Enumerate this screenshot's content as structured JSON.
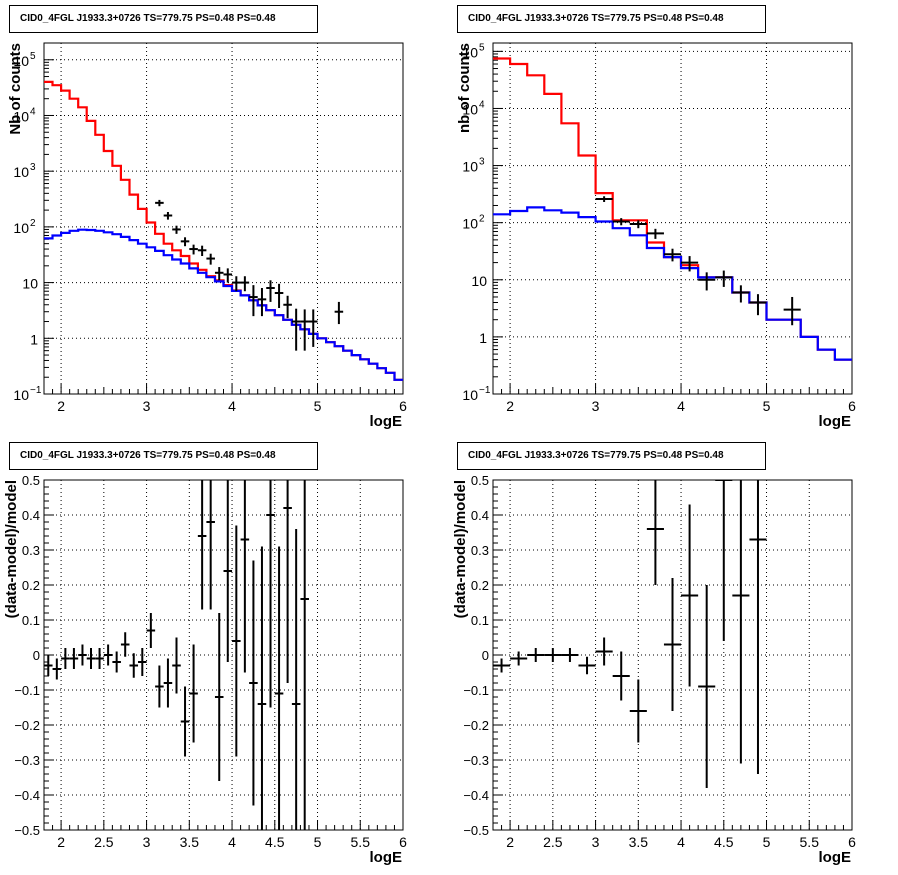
{
  "panels": [
    {
      "title": "CID0_4FGL J1933.3+0726 TS=779.75 PS=0.48 PS=0.48",
      "xlabel": "logE",
      "ylabel": "Nb of counts",
      "ylabel_style": "counts",
      "ylim": [
        0.1,
        200000
      ],
      "yscale": "log",
      "y_ticks": [
        {
          "v": 0.1,
          "b": "10",
          "e": "−1"
        },
        {
          "v": 1,
          "b": "1",
          "e": ""
        },
        {
          "v": 10,
          "b": "10",
          "e": ""
        },
        {
          "v": 100,
          "b": "10",
          "e": "2"
        },
        {
          "v": 1000,
          "b": "10",
          "e": "3"
        },
        {
          "v": 10000,
          "b": "10",
          "e": "4"
        },
        {
          "v": 100000,
          "b": "10",
          "e": "5"
        }
      ],
      "x_tick_labels": [
        "2",
        "3",
        "4",
        "5",
        "6"
      ]
    },
    {
      "title": "CID0_4FGL J1933.3+0726 TS=779.75 PS=0.48 PS=0.48",
      "xlabel": "logE",
      "ylabel": "nb of counts",
      "ylabel_style": "counts",
      "ylim": [
        0.1,
        140000
      ],
      "yscale": "log",
      "y_ticks": [
        {
          "v": 0.1,
          "b": "10",
          "e": "−1"
        },
        {
          "v": 1,
          "b": "1",
          "e": ""
        },
        {
          "v": 10,
          "b": "10",
          "e": ""
        },
        {
          "v": 100,
          "b": "10",
          "e": "2"
        },
        {
          "v": 1000,
          "b": "10",
          "e": "3"
        },
        {
          "v": 10000,
          "b": "10",
          "e": "4"
        },
        {
          "v": 100000,
          "b": "10",
          "e": "5"
        }
      ],
      "x_tick_labels": [
        "2",
        "3",
        "4",
        "5",
        "6"
      ]
    },
    {
      "title": "CID0_4FGL J1933.3+0726 TS=779.75 PS=0.48 PS=0.48",
      "xlabel": "logE",
      "ylabel": "(data-model)/model",
      "ylim": [
        -0.5,
        0.5
      ],
      "yscale": "linear",
      "y_tick_labels": [
        "−0.5",
        "−0.4",
        "−0.3",
        "−0.2",
        "−0.1",
        "0",
        "0.1",
        "0.2",
        "0.3",
        "0.4",
        "0.5"
      ],
      "x_tick_labels": [
        "2",
        "2.5",
        "3",
        "3.5",
        "4",
        "4.5",
        "5",
        "5.5",
        "6"
      ]
    },
    {
      "title": "CID0_4FGL J1933.3+0726 TS=779.75 PS=0.48 PS=0.48",
      "xlabel": "logE",
      "ylabel": "(data-model)/model",
      "ylim": [
        -0.5,
        0.5
      ],
      "yscale": "linear",
      "y_tick_labels": [
        "−0.5",
        "−0.4",
        "−0.3",
        "−0.2",
        "−0.1",
        "0",
        "0.1",
        "0.2",
        "0.3",
        "0.4",
        "0.5"
      ],
      "x_tick_labels": [
        "2",
        "2.5",
        "3",
        "3.5",
        "4",
        "4.5",
        "5",
        "5.5",
        "6"
      ]
    }
  ],
  "chart_data": [
    {
      "type": "line",
      "xlim": [
        1.8,
        6.0
      ],
      "series": [
        {
          "role": "total model",
          "color": "#ff0000",
          "step": 0.1,
          "x": [
            1.8,
            1.9,
            2.0,
            2.1,
            2.2,
            2.3,
            2.4,
            2.5,
            2.6,
            2.7,
            2.8,
            2.9,
            3.0,
            3.1,
            3.2,
            3.3,
            3.4,
            3.5,
            3.6,
            3.7,
            3.8,
            3.9,
            4.0,
            4.1,
            4.2,
            4.3,
            4.4,
            4.5,
            4.6,
            4.7,
            4.8,
            4.9,
            5.0,
            5.1,
            5.2,
            5.3,
            5.4,
            5.5,
            5.6,
            5.7,
            5.8,
            5.9
          ],
          "y": [
            40000,
            35000,
            28000,
            20000,
            14000,
            8000,
            4500,
            2300,
            1250,
            700,
            380,
            210,
            120,
            75,
            50,
            38,
            30,
            22,
            17,
            13,
            11,
            9,
            7.2,
            5.9,
            4.8,
            3.9,
            3.2,
            2.6,
            2.15,
            1.75,
            1.45,
            1.2,
            1.0,
            0.85,
            0.72,
            0.6,
            0.5,
            0.42,
            0.35,
            0.29,
            0.24,
            0.18
          ]
        },
        {
          "role": "component",
          "color": "#0000ff",
          "step": 0.1,
          "x": [
            1.8,
            1.9,
            2.0,
            2.1,
            2.2,
            2.3,
            2.4,
            2.5,
            2.6,
            2.7,
            2.8,
            2.9,
            3.0,
            3.1,
            3.2,
            3.3,
            3.4,
            3.5,
            3.6,
            3.7,
            3.8,
            3.9,
            4.0,
            4.1,
            4.2,
            4.3,
            4.4,
            4.5,
            4.6,
            4.7,
            4.8,
            4.9,
            5.0,
            5.1,
            5.2,
            5.3,
            5.4,
            5.5,
            5.6,
            5.7,
            5.8,
            5.9
          ],
          "y": [
            62,
            70,
            78,
            85,
            89,
            88,
            85,
            80,
            74,
            66,
            58,
            50,
            43,
            37,
            31,
            26,
            22,
            18,
            15,
            12.5,
            10.5,
            8.7,
            7.1,
            5.9,
            4.8,
            3.9,
            3.2,
            2.6,
            2.15,
            1.75,
            1.45,
            1.2,
            1.0,
            0.85,
            0.72,
            0.6,
            0.5,
            0.42,
            0.35,
            0.29,
            0.24,
            0.18
          ]
        },
        {
          "role": "data",
          "color": "#000000",
          "kind": "points",
          "x": [
            3.15,
            3.25,
            3.35,
            3.45,
            3.55,
            3.65,
            3.75,
            3.85,
            3.95,
            4.05,
            4.15,
            4.25,
            4.35,
            4.45,
            4.55,
            4.65,
            4.75,
            4.85,
            4.95,
            5.25
          ],
          "y": [
            270,
            160,
            90,
            55,
            40,
            38,
            27,
            15,
            14,
            10,
            10,
            5.5,
            5,
            8,
            6.5,
            4,
            2,
            2,
            2,
            3
          ],
          "xerr": 0.05,
          "ylo": [
            235,
            135,
            75,
            45,
            32,
            30,
            21,
            11,
            10,
            7,
            7,
            2.5,
            2.5,
            4.5,
            3.5,
            2.3,
            0.6,
            0.6,
            0.7,
            1.8
          ],
          "yhi": [
            305,
            185,
            105,
            65,
            48,
            46,
            33,
            19,
            18,
            13,
            13,
            9,
            8,
            11,
            9.5,
            5.8,
            3.4,
            3.3,
            3.3,
            4.5
          ]
        }
      ]
    },
    {
      "type": "line",
      "xlim": [
        1.8,
        6.0
      ],
      "series": [
        {
          "role": "total model",
          "color": "#ff0000",
          "step": 0.2,
          "x": [
            1.8,
            2.0,
            2.2,
            2.4,
            2.6,
            2.8,
            3.0,
            3.2,
            3.4,
            3.6,
            3.8,
            4.0,
            4.2,
            4.4,
            4.6,
            4.8,
            5.0,
            5.2,
            5.4,
            5.6,
            5.8
          ],
          "y": [
            75000,
            60000,
            38000,
            18000,
            5500,
            1500,
            330,
            110,
            110,
            45,
            25,
            18,
            11,
            11,
            6,
            4,
            2,
            2,
            1,
            0.6,
            0.4
          ]
        },
        {
          "role": "component",
          "color": "#0000ff",
          "step": 0.2,
          "x": [
            1.8,
            2.0,
            2.2,
            2.4,
            2.6,
            2.8,
            3.0,
            3.2,
            3.4,
            3.6,
            3.8,
            4.0,
            4.2,
            4.4,
            4.6,
            4.8,
            5.0,
            5.2,
            5.4,
            5.6,
            5.8
          ],
          "y": [
            140,
            160,
            185,
            165,
            150,
            125,
            105,
            80,
            60,
            36,
            25,
            16,
            11,
            11,
            6,
            4,
            2,
            2,
            1,
            0.6,
            0.4
          ]
        },
        {
          "role": "data",
          "color": "#000000",
          "kind": "points",
          "x": [
            3.1,
            3.3,
            3.5,
            3.7,
            3.9,
            4.1,
            4.3,
            4.5,
            4.7,
            4.9,
            5.3
          ],
          "y": [
            260,
            105,
            95,
            65,
            28,
            20,
            10,
            11,
            6,
            4,
            3
          ],
          "xerr": 0.1,
          "ylo": [
            230,
            90,
            80,
            52,
            21,
            14,
            6.5,
            7.5,
            4,
            2.4,
            1.6
          ],
          "yhi": [
            290,
            120,
            110,
            78,
            35,
            26,
            13.5,
            14.5,
            8,
            5.6,
            5
          ]
        }
      ]
    },
    {
      "type": "scatter",
      "xlim": [
        1.8,
        6.0
      ],
      "ylim": [
        -0.5,
        0.5
      ],
      "series": [
        {
          "role": "residuals",
          "color": "#000000",
          "xerr": 0.05,
          "x": [
            1.85,
            1.95,
            2.05,
            2.15,
            2.25,
            2.35,
            2.45,
            2.55,
            2.65,
            2.75,
            2.85,
            2.95,
            3.05,
            3.15,
            3.25,
            3.35,
            3.45,
            3.55,
            3.65,
            3.75,
            3.85,
            3.95,
            4.05,
            4.15,
            4.25,
            4.35,
            4.45,
            4.55,
            4.65,
            4.75,
            4.85
          ],
          "y": [
            -0.03,
            -0.04,
            -0.01,
            -0.01,
            0.0,
            -0.01,
            -0.01,
            0.0,
            -0.02,
            0.03,
            -0.03,
            -0.02,
            0.07,
            -0.09,
            -0.08,
            -0.03,
            -0.19,
            -0.11,
            0.34,
            0.38,
            -0.12,
            0.24,
            0.04,
            0.33,
            -0.08,
            -0.14,
            0.4,
            -0.11,
            0.42,
            -0.14,
            0.16
          ],
          "yerr": [
            0.03,
            0.03,
            0.03,
            0.03,
            0.03,
            0.03,
            0.03,
            0.03,
            0.03,
            0.035,
            0.035,
            0.04,
            0.05,
            0.06,
            0.07,
            0.08,
            0.1,
            0.14,
            0.21,
            0.25,
            0.24,
            0.26,
            0.33,
            0.38,
            0.35,
            0.45,
            0.55,
            0.42,
            0.5,
            0.5,
            0.75
          ]
        }
      ]
    },
    {
      "type": "scatter",
      "xlim": [
        1.8,
        6.0
      ],
      "ylim": [
        -0.5,
        0.5
      ],
      "series": [
        {
          "role": "residuals",
          "color": "#000000",
          "xerr": 0.1,
          "x": [
            1.9,
            2.1,
            2.3,
            2.5,
            2.7,
            2.9,
            3.1,
            3.3,
            3.5,
            3.7,
            3.9,
            4.1,
            4.3,
            4.5,
            4.7,
            4.9
          ],
          "y": [
            -0.03,
            -0.01,
            0.0,
            0.0,
            0.0,
            -0.03,
            0.01,
            -0.06,
            -0.16,
            0.36,
            0.03,
            0.17,
            -0.09,
            0.5,
            0.17,
            0.33
          ],
          "yerr": [
            0.02,
            0.02,
            0.02,
            0.02,
            0.02,
            0.025,
            0.04,
            0.07,
            0.09,
            0.16,
            0.19,
            0.26,
            0.29,
            0.46,
            0.48,
            0.67
          ]
        }
      ]
    }
  ]
}
